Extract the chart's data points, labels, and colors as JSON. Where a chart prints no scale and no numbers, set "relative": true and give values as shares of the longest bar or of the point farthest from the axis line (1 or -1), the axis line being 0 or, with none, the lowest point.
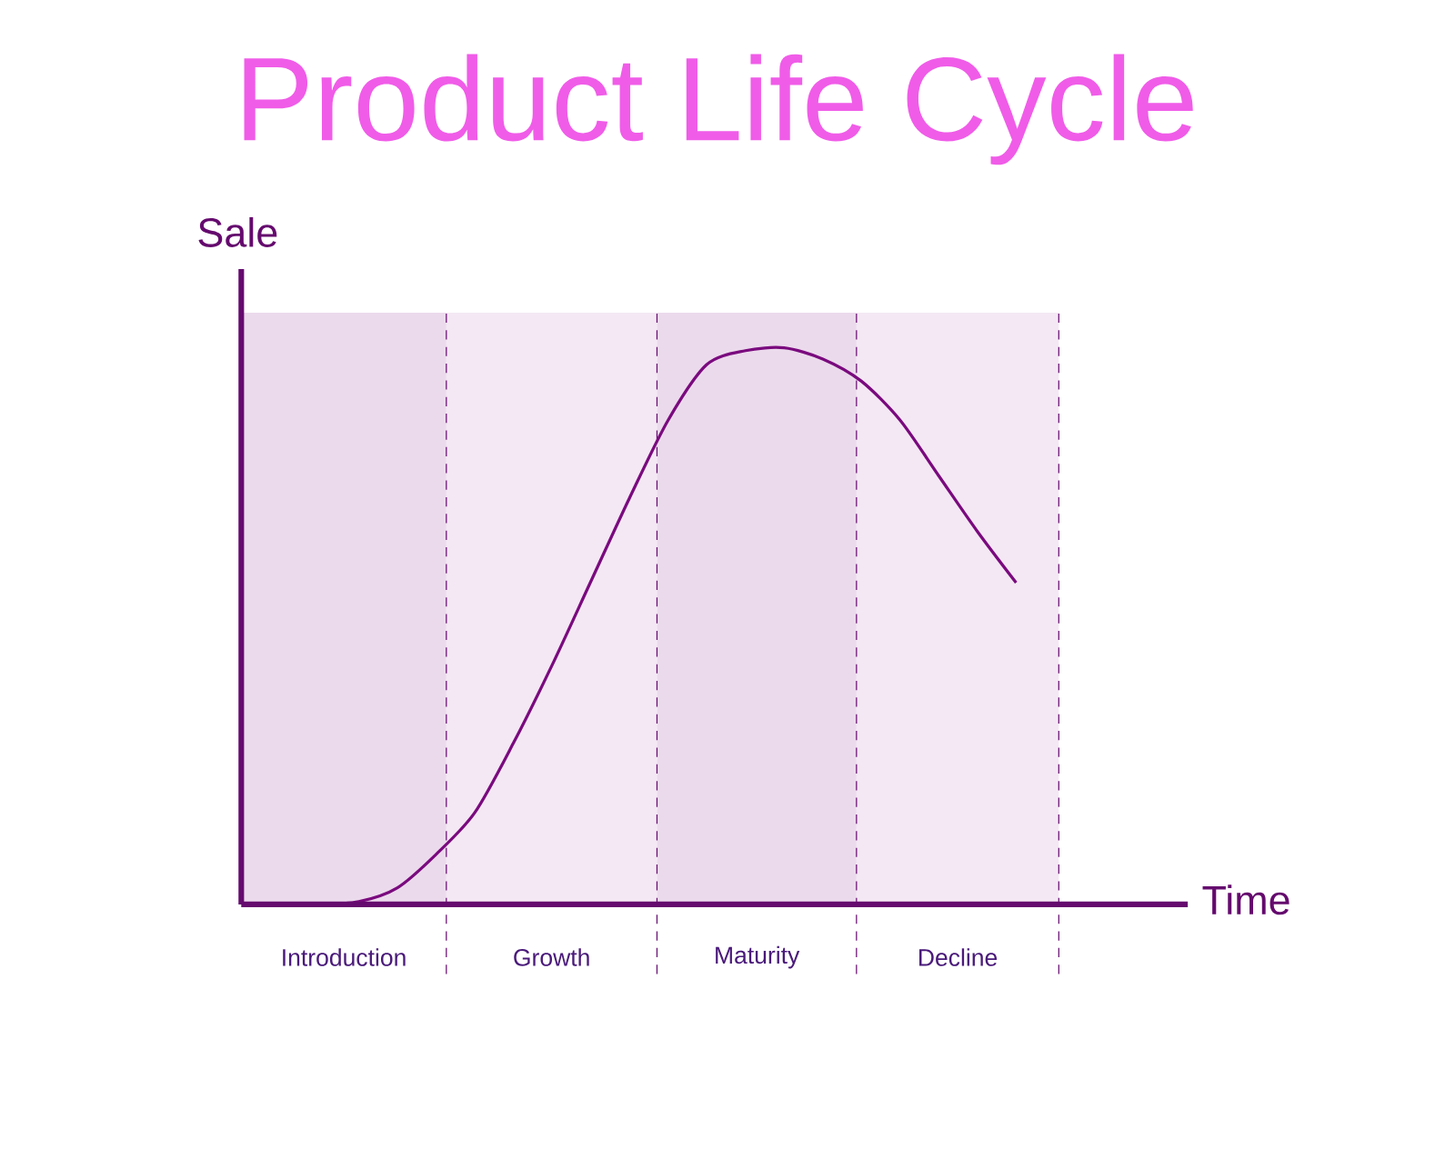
{
  "chart_data": {
    "type": "line",
    "title": "Product Life Cycle",
    "xlabel": "Time",
    "ylabel": "Sale",
    "relative": true,
    "categories": [
      null,
      null,
      null,
      null,
      null,
      null,
      null,
      null,
      null,
      null,
      null,
      null,
      null,
      null,
      null,
      null,
      null,
      null,
      null
    ],
    "annotations": [
      "Introduction",
      "Growth",
      "Maturity",
      "Decline"
    ],
    "series": [
      {
        "color": "#7a0a7e",
        "values": [
          0,
          0.005,
          0.03,
          0.09,
          0.165,
          0.29,
          0.43,
          0.58,
          0.73,
          0.87,
          0.97,
          0.995,
          1.0,
          0.98,
          0.94,
          0.87,
          0.77,
          0.67,
          0.578
        ]
      }
    ]
  }
}
